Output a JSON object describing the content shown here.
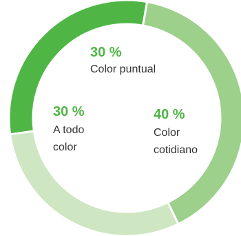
{
  "chart_data": {
    "type": "pie",
    "slices": [
      {
        "percent": "30 %",
        "value": 30,
        "label_lines": [
          "Color puntual"
        ],
        "color": "#4fb646"
      },
      {
        "percent": "40 %",
        "value": 40,
        "label_lines": [
          "Color",
          "cotidiano"
        ],
        "color": "#9dd08b"
      },
      {
        "percent": "30 %",
        "value": 30,
        "label_lines": [
          "A todo",
          "color"
        ],
        "color": "#cfe6c3"
      }
    ],
    "percent_color": "#4fb646"
  }
}
